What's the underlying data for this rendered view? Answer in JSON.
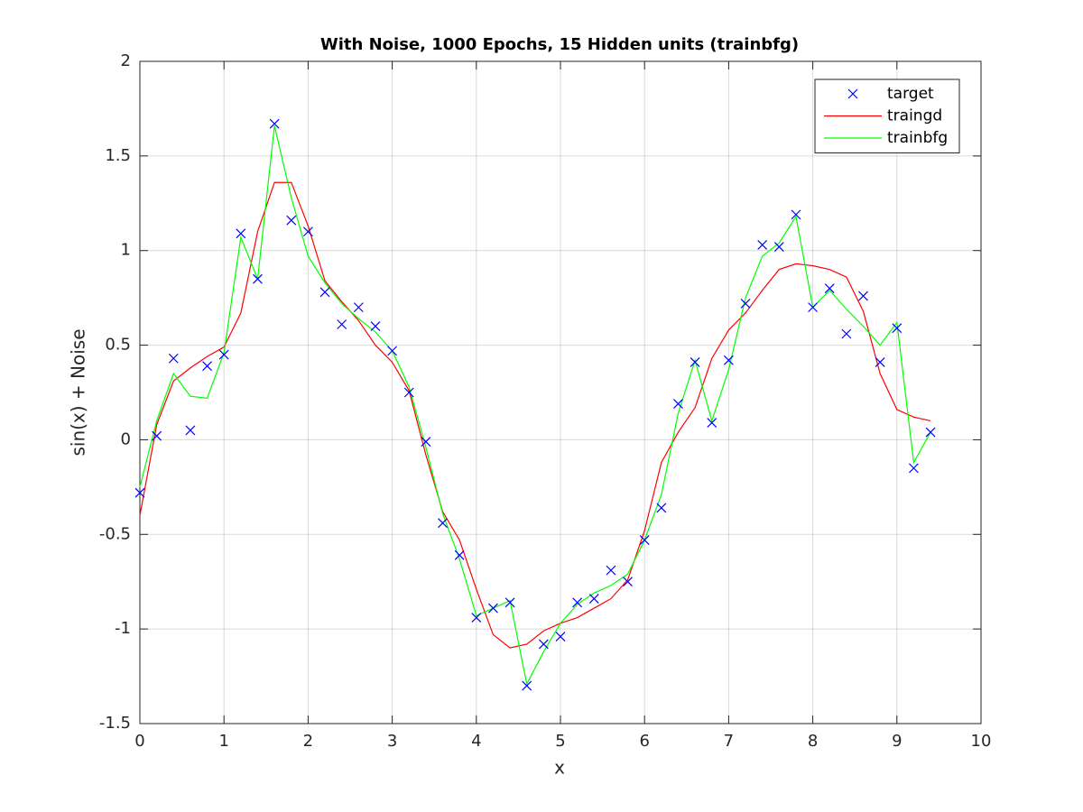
{
  "chart_data": {
    "type": "line",
    "title": "With Noise, 1000 Epochs, 15 Hidden units (trainbfg)",
    "xlabel": "x",
    "ylabel": "sin(x) + Noise",
    "x": [
      0,
      0.2,
      0.4,
      0.6,
      0.8,
      1,
      1.2,
      1.4,
      1.6,
      1.8,
      2,
      2.2,
      2.4,
      2.6,
      2.8,
      3,
      3.2,
      3.4,
      3.6,
      3.8,
      4,
      4.2,
      4.4,
      4.6,
      4.8,
      5,
      5.2,
      5.4,
      5.6,
      5.8,
      6,
      6.2,
      6.4,
      6.6,
      6.8,
      7,
      7.2,
      7.4,
      7.6,
      7.8,
      8,
      8.2,
      8.4,
      8.6,
      8.8,
      9,
      9.2,
      9.4
    ],
    "series": [
      {
        "name": "target",
        "color": "#0000ff",
        "style": "marker",
        "values": [
          -0.28,
          0.02,
          0.43,
          0.05,
          0.39,
          0.45,
          1.09,
          0.85,
          1.67,
          1.16,
          1.1,
          0.78,
          0.61,
          0.7,
          0.6,
          0.47,
          0.25,
          -0.01,
          -0.44,
          -0.61,
          -0.94,
          -0.89,
          -0.86,
          -1.3,
          -1.08,
          -1.04,
          -0.86,
          -0.84,
          -0.69,
          -0.75,
          -0.53,
          -0.36,
          0.19,
          0.41,
          0.09,
          0.42,
          0.72,
          1.03,
          1.02,
          1.19,
          0.7,
          0.8,
          0.56,
          0.76,
          0.41,
          0.59,
          -0.15,
          0.04
        ]
      },
      {
        "name": "traingd",
        "color": "#ff0000",
        "style": "line",
        "values": [
          -0.4,
          0.08,
          0.31,
          0.38,
          0.44,
          0.49,
          0.67,
          1.1,
          1.36,
          1.36,
          1.13,
          0.84,
          0.73,
          0.63,
          0.5,
          0.41,
          0.26,
          -0.08,
          -0.38,
          -0.53,
          -0.79,
          -1.03,
          -1.1,
          -1.08,
          -1.01,
          -0.97,
          -0.94,
          -0.89,
          -0.84,
          -0.74,
          -0.48,
          -0.12,
          0.04,
          0.17,
          0.43,
          0.58,
          0.67,
          0.79,
          0.9,
          0.93,
          0.92,
          0.9,
          0.86,
          0.68,
          0.35,
          0.16,
          0.12,
          0.1
        ]
      },
      {
        "name": "trainbfg",
        "color": "#00ff00",
        "style": "line",
        "values": [
          -0.25,
          0.1,
          0.35,
          0.23,
          0.22,
          0.46,
          1.07,
          0.85,
          1.66,
          1.28,
          0.97,
          0.83,
          0.72,
          0.64,
          0.57,
          0.47,
          0.28,
          -0.04,
          -0.39,
          -0.63,
          -0.93,
          -0.89,
          -0.85,
          -1.29,
          -1.12,
          -0.97,
          -0.87,
          -0.81,
          -0.77,
          -0.71,
          -0.53,
          -0.29,
          0.14,
          0.42,
          0.1,
          0.37,
          0.75,
          0.97,
          1.04,
          1.18,
          0.7,
          0.79,
          0.69,
          0.6,
          0.5,
          0.62,
          -0.12,
          0.04
        ]
      }
    ],
    "xlim": [
      0,
      10
    ],
    "xticks": [
      0,
      1,
      2,
      3,
      4,
      5,
      6,
      7,
      8,
      9,
      10
    ],
    "ylim": [
      -1.5,
      2
    ],
    "yticks": [
      -1.5,
      -1,
      -0.5,
      0,
      0.5,
      1,
      1.5,
      2
    ],
    "grid": true,
    "legend": "northeast"
  }
}
